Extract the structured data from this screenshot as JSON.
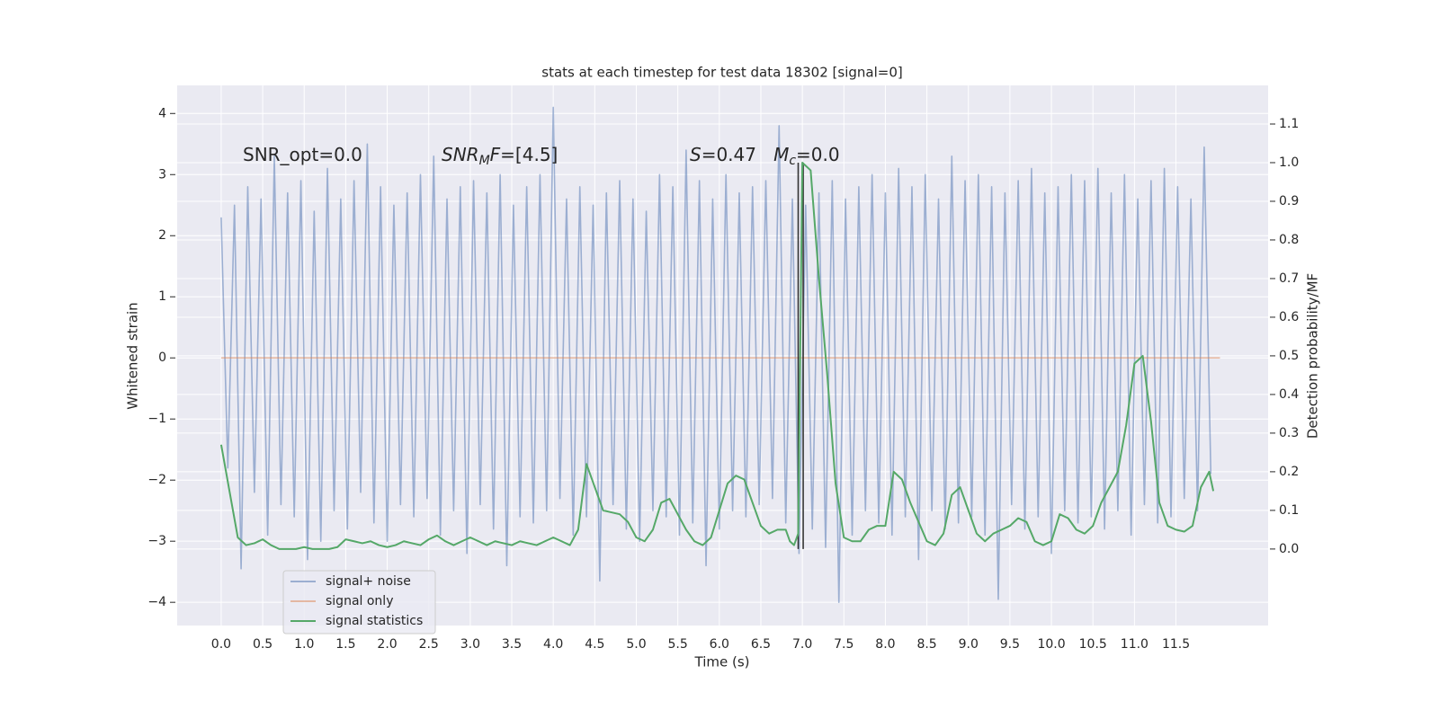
{
  "chart_data": {
    "type": "line",
    "title": "stats at each timestep for test data 18302 [signal=0]",
    "xlabel": "Time (s)",
    "ylabel": "Whitened strain",
    "y2label": "Detection probability/MF",
    "xlim": [
      -0.53,
      12.61
    ],
    "ylim": [
      -4.38,
      4.46
    ],
    "y2lim": [
      -0.198,
      1.2
    ],
    "xticks": [
      {
        "value": 0,
        "label": "0.0"
      },
      0.5,
      {
        "value": 1,
        "label": "1.0"
      },
      1.5,
      {
        "value": 2,
        "label": "2.0"
      },
      2.5,
      {
        "value": 3,
        "label": "3.0"
      },
      3.5,
      {
        "value": 4,
        "label": "4.0"
      },
      4.5,
      {
        "value": 5,
        "label": "5.0"
      },
      5.5,
      {
        "value": 6,
        "label": "6.0"
      },
      6.5,
      {
        "value": 7,
        "label": "7.0"
      },
      7.5,
      {
        "value": 8,
        "label": "8.0"
      },
      8.5,
      {
        "value": 9,
        "label": "9.0"
      },
      9.5,
      {
        "value": 10,
        "label": "10.0"
      },
      10.5,
      {
        "value": 11,
        "label": "11.0"
      },
      11.5
    ],
    "yticks": [
      {
        "value": -4,
        "label": "−4"
      },
      {
        "value": -3,
        "label": "−3"
      },
      {
        "value": -2,
        "label": "−2"
      },
      {
        "value": -1,
        "label": "−1"
      },
      0,
      1,
      2,
      3,
      4
    ],
    "y2ticks": [
      {
        "value": 0,
        "label": "0.0"
      },
      0.1,
      0.2,
      0.3,
      0.4,
      0.5,
      0.6,
      0.7,
      0.8,
      0.9,
      {
        "value": 1,
        "label": "1.0"
      },
      1.1
    ],
    "grid": true,
    "legend": "lower left",
    "series": [
      {
        "name": "signal+ noise",
        "color": "#4c72b0",
        "opacity": 0.5,
        "x": [
          0,
          0.08,
          0.16,
          0.24,
          0.32,
          0.4,
          0.48,
          0.56,
          0.64,
          0.72,
          0.8,
          0.88,
          0.96,
          1.04,
          1.12,
          1.2,
          1.28,
          1.36,
          1.44,
          1.52,
          1.6,
          1.68,
          1.76,
          1.84,
          1.92,
          2,
          2.08,
          2.16,
          2.24,
          2.32,
          2.4,
          2.48,
          2.56,
          2.64,
          2.72,
          2.8,
          2.88,
          2.96,
          3.04,
          3.12,
          3.2,
          3.28,
          3.36,
          3.44,
          3.52,
          3.6,
          3.68,
          3.76,
          3.84,
          3.92,
          4,
          4.08,
          4.16,
          4.24,
          4.32,
          4.4,
          4.48,
          4.56,
          4.64,
          4.72,
          4.8,
          4.88,
          4.96,
          5.04,
          5.12,
          5.2,
          5.28,
          5.36,
          5.44,
          5.52,
          5.6,
          5.68,
          5.76,
          5.84,
          5.92,
          6,
          6.08,
          6.16,
          6.24,
          6.32,
          6.4,
          6.48,
          6.56,
          6.64,
          6.72,
          6.8,
          6.88,
          6.96,
          7.04,
          7.12,
          7.2,
          7.28,
          7.36,
          7.44,
          7.52,
          7.6,
          7.68,
          7.76,
          7.84,
          7.92,
          8,
          8.08,
          8.16,
          8.24,
          8.32,
          8.4,
          8.48,
          8.56,
          8.64,
          8.72,
          8.8,
          8.88,
          8.96,
          9.04,
          9.12,
          9.2,
          9.28,
          9.36,
          9.44,
          9.52,
          9.6,
          9.68,
          9.76,
          9.84,
          9.92,
          10,
          10.08,
          10.16,
          10.24,
          10.32,
          10.4,
          10.48,
          10.56,
          10.64,
          10.72,
          10.8,
          10.88,
          10.96,
          11.04,
          11.12,
          11.2,
          11.28,
          11.36,
          11.44,
          11.52,
          11.6,
          11.68,
          11.76,
          11.84,
          11.92
        ],
        "values": [
          2.3,
          -1.8,
          2.5,
          -3.45,
          2.8,
          -2.2,
          2.6,
          -2.9,
          3.3,
          -2.4,
          2.7,
          -2.6,
          2.9,
          -3.3,
          2.4,
          -3.0,
          3.1,
          -2.5,
          2.6,
          -2.8,
          2.9,
          -2.2,
          3.5,
          -2.7,
          2.8,
          -3.0,
          2.5,
          -2.4,
          2.7,
          -2.6,
          3.0,
          -2.3,
          3.3,
          -2.9,
          2.6,
          -2.5,
          2.8,
          -3.2,
          2.9,
          -2.4,
          2.7,
          -2.8,
          3.0,
          -3.4,
          2.5,
          -2.6,
          2.8,
          -2.7,
          3.0,
          -2.5,
          4.1,
          -2.3,
          2.6,
          -2.9,
          2.8,
          -2.6,
          2.5,
          -3.65,
          2.7,
          -2.4,
          2.9,
          -2.8,
          2.6,
          -3.0,
          2.4,
          -2.5,
          3.0,
          -2.6,
          2.8,
          -2.9,
          3.4,
          -2.7,
          2.9,
          -3.4,
          2.6,
          -2.8,
          3.0,
          -2.5,
          2.7,
          -2.6,
          2.8,
          -2.4,
          2.9,
          -2.3,
          3.8,
          -2.7,
          2.6,
          -3.2,
          2.5,
          -2.8,
          2.7,
          -3.1,
          2.9,
          -4.0,
          2.6,
          -2.9,
          2.8,
          -2.5,
          3.0,
          -2.7,
          2.7,
          -2.9,
          3.1,
          -2.6,
          2.8,
          -3.3,
          3.0,
          -2.5,
          2.6,
          -2.8,
          3.3,
          -2.7,
          2.9,
          -2.6,
          3.0,
          -2.9,
          2.8,
          -3.95,
          2.7,
          -2.4,
          2.9,
          -2.8,
          3.1,
          -2.6,
          2.7,
          -3.2,
          2.8,
          -2.5,
          3.0,
          -2.7,
          2.9,
          -2.6,
          3.1,
          -2.8,
          2.7,
          -2.5,
          3.0,
          -2.9,
          2.6,
          -2.4,
          2.9,
          -2.7,
          3.1,
          -2.6,
          2.8,
          -2.3,
          2.6,
          -2.5,
          3.45,
          -1.9
        ]
      },
      {
        "name": "signal only",
        "color": "#dd8452",
        "opacity": 0.5,
        "x": [
          0,
          12.03
        ],
        "values": [
          0,
          0
        ]
      },
      {
        "name": "signal statistics",
        "color": "#55a868",
        "opacity": 1,
        "axis": "y2",
        "x": [
          0,
          0.1,
          0.2,
          0.3,
          0.4,
          0.5,
          0.6,
          0.7,
          0.8,
          0.9,
          1,
          1.1,
          1.2,
          1.3,
          1.4,
          1.5,
          1.6,
          1.7,
          1.8,
          1.9,
          2,
          2.1,
          2.2,
          2.3,
          2.4,
          2.5,
          2.6,
          2.7,
          2.8,
          2.9,
          3,
          3.1,
          3.2,
          3.3,
          3.4,
          3.5,
          3.6,
          3.7,
          3.8,
          3.9,
          4,
          4.1,
          4.2,
          4.3,
          4.4,
          4.5,
          4.6,
          4.7,
          4.8,
          4.9,
          5,
          5.1,
          5.2,
          5.3,
          5.4,
          5.5,
          5.6,
          5.7,
          5.8,
          5.9,
          6,
          6.1,
          6.2,
          6.3,
          6.4,
          6.5,
          6.6,
          6.7,
          6.8,
          6.85,
          6.9,
          6.95,
          7,
          7.05,
          7.1,
          7.2,
          7.3,
          7.4,
          7.5,
          7.6,
          7.7,
          7.8,
          7.9,
          8,
          8.1,
          8.2,
          8.3,
          8.4,
          8.5,
          8.6,
          8.7,
          8.8,
          8.9,
          9,
          9.1,
          9.2,
          9.3,
          9.4,
          9.5,
          9.6,
          9.7,
          9.8,
          9.9,
          10,
          10.1,
          10.2,
          10.3,
          10.4,
          10.5,
          10.6,
          10.7,
          10.8,
          10.9,
          11,
          11.1,
          11.2,
          11.3,
          11.4,
          11.5,
          11.6,
          11.7,
          11.8,
          11.9,
          11.95
        ],
        "values": [
          0.27,
          0.15,
          0.03,
          0.01,
          0.015,
          0.025,
          0.01,
          0.0,
          0.0,
          0.0,
          0.005,
          0.0,
          0.0,
          0.0,
          0.005,
          0.025,
          0.02,
          0.015,
          0.02,
          0.01,
          0.005,
          0.01,
          0.02,
          0.015,
          0.01,
          0.025,
          0.035,
          0.02,
          0.01,
          0.02,
          0.03,
          0.02,
          0.01,
          0.02,
          0.015,
          0.01,
          0.02,
          0.015,
          0.01,
          0.02,
          0.03,
          0.02,
          0.01,
          0.05,
          0.22,
          0.16,
          0.1,
          0.095,
          0.09,
          0.07,
          0.03,
          0.02,
          0.05,
          0.12,
          0.13,
          0.09,
          0.05,
          0.02,
          0.01,
          0.03,
          0.1,
          0.17,
          0.19,
          0.18,
          0.12,
          0.06,
          0.04,
          0.05,
          0.05,
          0.02,
          0.01,
          0.04,
          1.0,
          0.99,
          0.98,
          0.7,
          0.45,
          0.17,
          0.03,
          0.02,
          0.02,
          0.05,
          0.06,
          0.06,
          0.2,
          0.18,
          0.12,
          0.07,
          0.02,
          0.01,
          0.04,
          0.14,
          0.16,
          0.1,
          0.04,
          0.02,
          0.04,
          0.05,
          0.06,
          0.08,
          0.07,
          0.02,
          0.01,
          0.02,
          0.09,
          0.08,
          0.05,
          0.04,
          0.06,
          0.12,
          0.16,
          0.2,
          0.32,
          0.48,
          0.5,
          0.33,
          0.12,
          0.06,
          0.05,
          0.045,
          0.06,
          0.16,
          0.2,
          0.15
        ]
      }
    ],
    "vlines": [
      6.95,
      7.01
    ],
    "vline_color": "#333333",
    "annotations": [
      [
        {
          "text": "SNR_opt=0.0",
          "style": "normal"
        }
      ],
      [
        {
          "text": "SNR",
          "style": "italic"
        },
        {
          "text": "M",
          "style": "sub"
        },
        {
          "text": "F",
          "style": "italic"
        },
        {
          "text": "=[4.5]",
          "style": "normal"
        }
      ],
      [
        {
          "text": "S",
          "style": "italic"
        },
        {
          "text": "=0.47   ",
          "style": "normal"
        },
        {
          "text": "M",
          "style": "italic"
        },
        {
          "text": "c",
          "style": "sub"
        },
        {
          "text": "=0.0",
          "style": "normal"
        }
      ]
    ]
  }
}
